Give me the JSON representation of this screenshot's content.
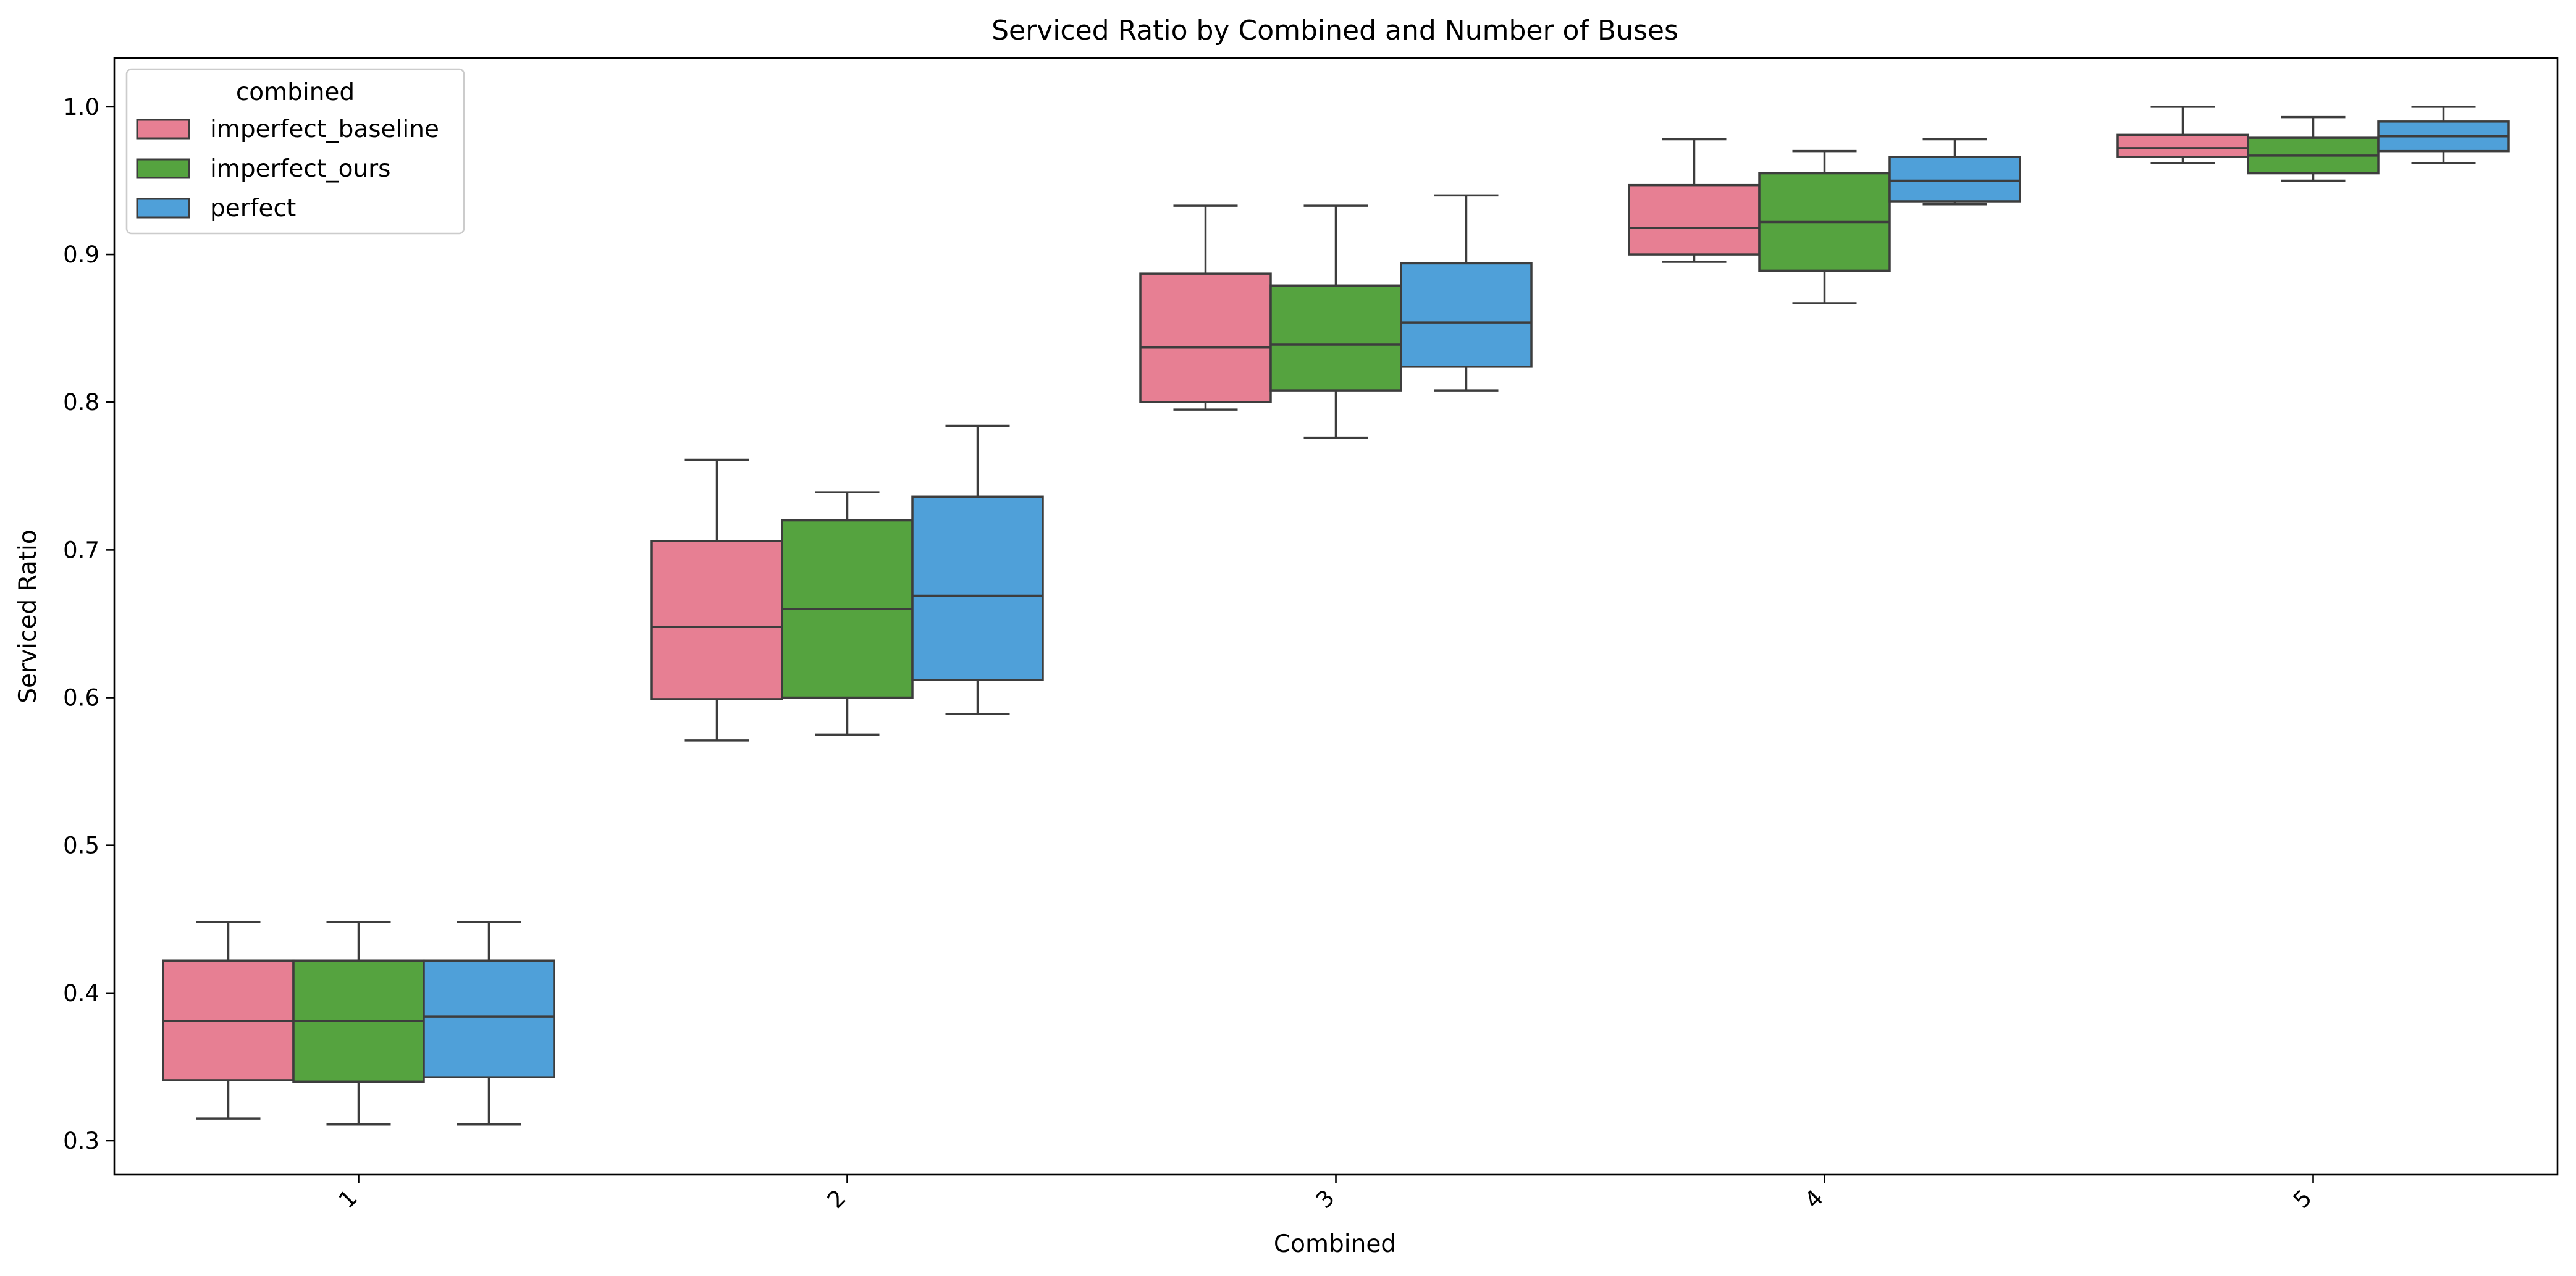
{
  "chart_data": {
    "type": "box",
    "title": "Serviced Ratio by Combined and Number of Buses",
    "xlabel": "Combined",
    "ylabel": "Serviced Ratio",
    "categories": [
      "1",
      "2",
      "3",
      "4",
      "5"
    ],
    "ylim": [
      0.277,
      1.033
    ],
    "yticks": [
      "0.3",
      "0.4",
      "0.5",
      "0.6",
      "0.7",
      "0.8",
      "0.9",
      "1.0"
    ],
    "grid": false,
    "legend": {
      "title": "combined",
      "placement": "top-left"
    },
    "series": [
      {
        "name": "imperfect_baseline",
        "color": "#e77f93",
        "boxes": [
          {
            "whislo": 0.315,
            "q1": 0.341,
            "med": 0.381,
            "q3": 0.422,
            "whishi": 0.448
          },
          {
            "whislo": 0.571,
            "q1": 0.599,
            "med": 0.648,
            "q3": 0.706,
            "whishi": 0.761
          },
          {
            "whislo": 0.795,
            "q1": 0.8,
            "med": 0.837,
            "q3": 0.887,
            "whishi": 0.933
          },
          {
            "whislo": 0.895,
            "q1": 0.9,
            "med": 0.918,
            "q3": 0.947,
            "whishi": 0.978
          },
          {
            "whislo": 0.962,
            "q1": 0.966,
            "med": 0.972,
            "q3": 0.981,
            "whishi": 1.0
          }
        ]
      },
      {
        "name": "imperfect_ours",
        "color": "#55a33f",
        "boxes": [
          {
            "whislo": 0.311,
            "q1": 0.34,
            "med": 0.381,
            "q3": 0.422,
            "whishi": 0.448
          },
          {
            "whislo": 0.575,
            "q1": 0.6,
            "med": 0.66,
            "q3": 0.72,
            "whishi": 0.739
          },
          {
            "whislo": 0.776,
            "q1": 0.808,
            "med": 0.839,
            "q3": 0.879,
            "whishi": 0.933
          },
          {
            "whislo": 0.867,
            "q1": 0.889,
            "med": 0.922,
            "q3": 0.955,
            "whishi": 0.97
          },
          {
            "whislo": 0.95,
            "q1": 0.955,
            "med": 0.967,
            "q3": 0.979,
            "whishi": 0.993
          }
        ]
      },
      {
        "name": "perfect",
        "color": "#4fa0d9",
        "boxes": [
          {
            "whislo": 0.311,
            "q1": 0.343,
            "med": 0.384,
            "q3": 0.422,
            "whishi": 0.448
          },
          {
            "whislo": 0.589,
            "q1": 0.612,
            "med": 0.669,
            "q3": 0.736,
            "whishi": 0.784
          },
          {
            "whislo": 0.808,
            "q1": 0.824,
            "med": 0.854,
            "q3": 0.894,
            "whishi": 0.94
          },
          {
            "whislo": 0.934,
            "q1": 0.936,
            "med": 0.95,
            "q3": 0.966,
            "whishi": 0.978
          },
          {
            "whislo": 0.962,
            "q1": 0.97,
            "med": 0.98,
            "q3": 0.99,
            "whishi": 1.0
          }
        ]
      }
    ]
  }
}
